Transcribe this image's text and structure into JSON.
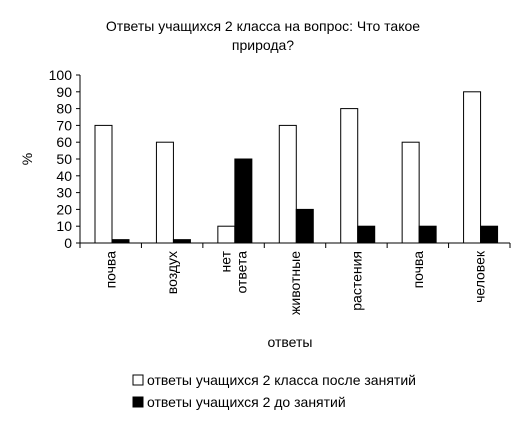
{
  "chart_data": {
    "type": "bar",
    "title_lines": [
      "Ответы учащихся 2 класса на вопрос: Что такое",
      "природа?"
    ],
    "xlabel": "ответы",
    "ylabel": "%",
    "ylim": [
      0,
      100
    ],
    "yticks": [
      0,
      10,
      20,
      30,
      40,
      50,
      60,
      70,
      80,
      90,
      100
    ],
    "categories": [
      [
        "почва"
      ],
      [
        "воздух"
      ],
      [
        "нет",
        "ответа"
      ],
      [
        "животные"
      ],
      [
        "растения"
      ],
      [
        "почва"
      ],
      [
        "человек"
      ]
    ],
    "series": [
      {
        "name": "ответы учащихся 2 класса после занятий",
        "color": "#ffffff",
        "values": [
          70,
          60,
          10,
          70,
          80,
          60,
          90
        ]
      },
      {
        "name": "ответы учащихся 2 до занятий",
        "color": "#000000",
        "values": [
          2,
          2,
          50,
          20,
          10,
          10,
          10
        ]
      }
    ],
    "grid": false,
    "legend_position": "bottom"
  }
}
